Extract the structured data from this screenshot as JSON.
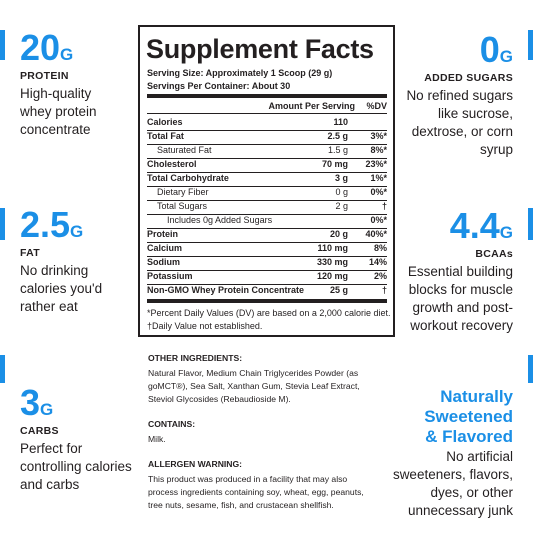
{
  "left_stats": [
    {
      "value": "20",
      "unit": "G",
      "label": "PROTEIN",
      "description": [
        "High-quality",
        "whey protein",
        "concentrate"
      ]
    },
    {
      "value": "2.5",
      "unit": "G",
      "label": "FAT",
      "description": [
        "No drinking",
        "calories you'd",
        "rather eat"
      ]
    },
    {
      "value": "3",
      "unit": "G",
      "label": "CARBS",
      "description": [
        "Perfect for",
        "controlling calories",
        "and carbs"
      ]
    }
  ],
  "right_stats": [
    {
      "value": "0",
      "unit": "G",
      "label": "ADDED SUGARS",
      "description": [
        "No refined sugars",
        "like sucrose,",
        "dextrose, or corn",
        "syrup"
      ]
    },
    {
      "value": "4.4",
      "unit": "G",
      "label": "BCAAs",
      "description": [
        "Essential building",
        "blocks for muscle",
        "growth and post-",
        "workout recovery"
      ]
    }
  ],
  "sweetened": {
    "headline": [
      "Naturally",
      "Sweetened",
      "& Flavored"
    ],
    "description": [
      "No artificial",
      "sweeteners, flavors,",
      "dyes, or other",
      "unnecessary junk"
    ]
  },
  "facts": {
    "title": "Supplement Facts",
    "serving_size": "Serving Size: Approximately 1 Scoop (29 g)",
    "servings_per_container": "Servings Per Container: About 30",
    "header": {
      "amount": "Amount Per Serving",
      "dv": "%DV"
    },
    "rows": [
      {
        "name": "Calories",
        "amount": "110",
        "dv": "",
        "indent": 0
      },
      {
        "name": "Total Fat",
        "amount": "2.5 g",
        "dv": "3%*",
        "indent": 0
      },
      {
        "name": "Saturated Fat",
        "amount": "1.5 g",
        "dv": "8%*",
        "indent": 1
      },
      {
        "name": "Cholesterol",
        "amount": "70 mg",
        "dv": "23%*",
        "indent": 0
      },
      {
        "name": "Total Carbohydrate",
        "amount": "3 g",
        "dv": "1%*",
        "indent": 0
      },
      {
        "name": "Dietary Fiber",
        "amount": "0 g",
        "dv": "0%*",
        "indent": 1
      },
      {
        "name": "Total Sugars",
        "amount": "2 g",
        "dv": "†",
        "indent": 1
      },
      {
        "name": "Includes 0g Added Sugars",
        "amount": "",
        "dv": "0%*",
        "indent": 2
      },
      {
        "name": "Protein",
        "amount": "20 g",
        "dv": "40%*",
        "indent": 0
      },
      {
        "name": "Calcium",
        "amount": "110 mg",
        "dv": "8%",
        "indent": 0
      },
      {
        "name": "Sodium",
        "amount": "330 mg",
        "dv": "14%",
        "indent": 0
      },
      {
        "name": "Potassium",
        "amount": "120 mg",
        "dv": "2%",
        "indent": 0
      },
      {
        "name": "Non-GMO Whey Protein Concentrate",
        "amount": "25 g",
        "dv": "†",
        "indent": 0
      }
    ],
    "footnotes": [
      "*Percent Daily Values (DV) are based on a 2,000 calorie diet.",
      "†Daily Value not established."
    ]
  },
  "ingredients": {
    "heading": "OTHER INGREDIENTS:",
    "lines": [
      "Natural Flavor, Medium Chain Triglycerides Powder (as",
      "goMCT®), Sea Salt, Xanthan Gum, Stevia Leaf Extract,",
      "Steviol Glycosides (Rebaudioside M)."
    ]
  },
  "contains": {
    "heading": "CONTAINS:",
    "lines": [
      "Milk."
    ]
  },
  "allergen": {
    "heading": "ALLERGEN WARNING:",
    "lines": [
      "This product was produced in a facility that may also",
      "process ingredients containing soy, wheat, egg, peanuts,",
      "tree nuts, sesame, fish, and crustacean shellfish."
    ]
  }
}
